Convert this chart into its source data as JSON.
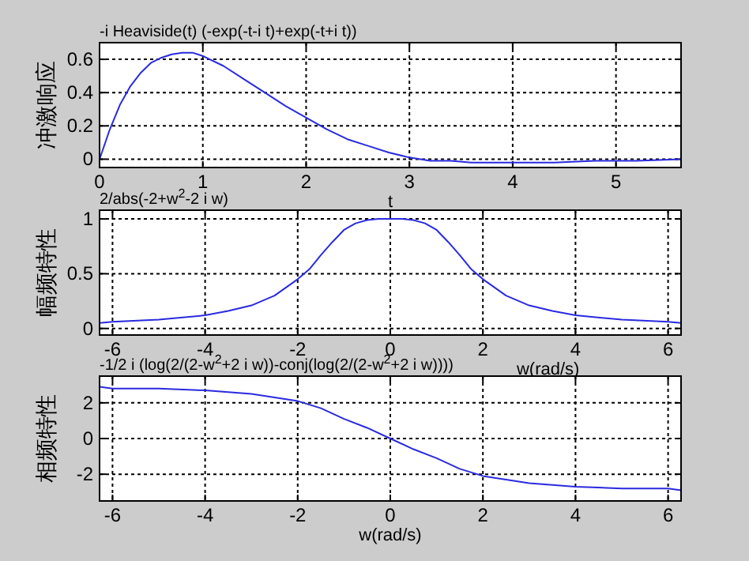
{
  "chart_data": [
    {
      "type": "line",
      "title": "-i Heaviside(t) (-exp(-t-i t)+exp(-t+i t))",
      "xlabel": "t",
      "ylabel": "冲激响应",
      "grid": true,
      "xlim": [
        0,
        5.63
      ],
      "ylim": [
        -0.05,
        0.7
      ],
      "xticks": [
        0,
        1,
        2,
        3,
        4,
        5
      ],
      "yticks": [
        0,
        0.2,
        0.4,
        0.6
      ],
      "color": "#2a2ae0",
      "x": [
        0,
        0.1,
        0.2,
        0.3,
        0.4,
        0.5,
        0.6,
        0.7,
        0.8,
        0.9,
        1.0,
        1.2,
        1.4,
        1.6,
        1.8,
        2.0,
        2.2,
        2.4,
        2.6,
        2.8,
        3.0,
        3.2,
        3.4,
        3.6,
        3.8,
        4.0,
        4.4,
        4.8,
        5.2,
        5.63
      ],
      "values": [
        0,
        0.18,
        0.33,
        0.44,
        0.52,
        0.58,
        0.61,
        0.63,
        0.64,
        0.64,
        0.62,
        0.56,
        0.48,
        0.4,
        0.32,
        0.25,
        0.18,
        0.12,
        0.08,
        0.04,
        0.01,
        -0.01,
        -0.01,
        -0.02,
        -0.02,
        -0.02,
        -0.02,
        -0.01,
        -0.01,
        0
      ]
    },
    {
      "type": "line",
      "title": "2/abs(-2+w$^{2}$-2 i w)",
      "xlabel": "w(rad/s)",
      "ylabel": "幅频特性",
      "grid": true,
      "xlim": [
        -6.28,
        6.28
      ],
      "ylim": [
        -0.06,
        1.08
      ],
      "xticks": [
        -6,
        -4,
        -2,
        0,
        2,
        4,
        6
      ],
      "yticks": [
        0,
        0.5,
        1
      ],
      "color": "#2a2ae0",
      "x": [
        -6.28,
        -6,
        -5,
        -4,
        -3.5,
        -3,
        -2.5,
        -2,
        -1.75,
        -1.5,
        -1.25,
        -1,
        -0.75,
        -0.5,
        -0.25,
        0,
        0.25,
        0.5,
        0.75,
        1,
        1.25,
        1.5,
        1.75,
        2,
        2.5,
        3,
        3.5,
        4,
        5,
        6,
        6.28
      ],
      "values": [
        0.05,
        0.06,
        0.08,
        0.12,
        0.16,
        0.21,
        0.3,
        0.45,
        0.54,
        0.67,
        0.79,
        0.9,
        0.96,
        0.99,
        1,
        1,
        1,
        0.99,
        0.96,
        0.9,
        0.79,
        0.67,
        0.54,
        0.45,
        0.3,
        0.21,
        0.16,
        0.12,
        0.08,
        0.06,
        0.05
      ]
    },
    {
      "type": "line",
      "title": "-1/2 i (log(2/(2-w$^{2}$+2 i w))-conj(log(2/(2-w$^{2}$+2 i w))))",
      "xlabel": "w(rad/s)",
      "ylabel": "相频特性",
      "grid": true,
      "xlim": [
        -6.28,
        6.28
      ],
      "ylim": [
        -3.5,
        3.5
      ],
      "xticks": [
        -6,
        -4,
        -2,
        0,
        2,
        4,
        6
      ],
      "yticks": [
        -2,
        0,
        2
      ],
      "color": "#2a2ae0",
      "x": [
        -6.28,
        -6,
        -5,
        -4,
        -3,
        -2.5,
        -2,
        -1.5,
        -1,
        -0.5,
        0,
        0.5,
        1,
        1.5,
        2,
        2.5,
        3,
        4,
        5,
        6,
        6.28
      ],
      "values": [
        2.9,
        2.8,
        2.8,
        2.7,
        2.5,
        2.3,
        2.1,
        1.7,
        1.1,
        0.6,
        0,
        -0.6,
        -1.1,
        -1.7,
        -2.1,
        -2.3,
        -2.5,
        -2.7,
        -2.8,
        -2.8,
        -2.9
      ]
    }
  ]
}
